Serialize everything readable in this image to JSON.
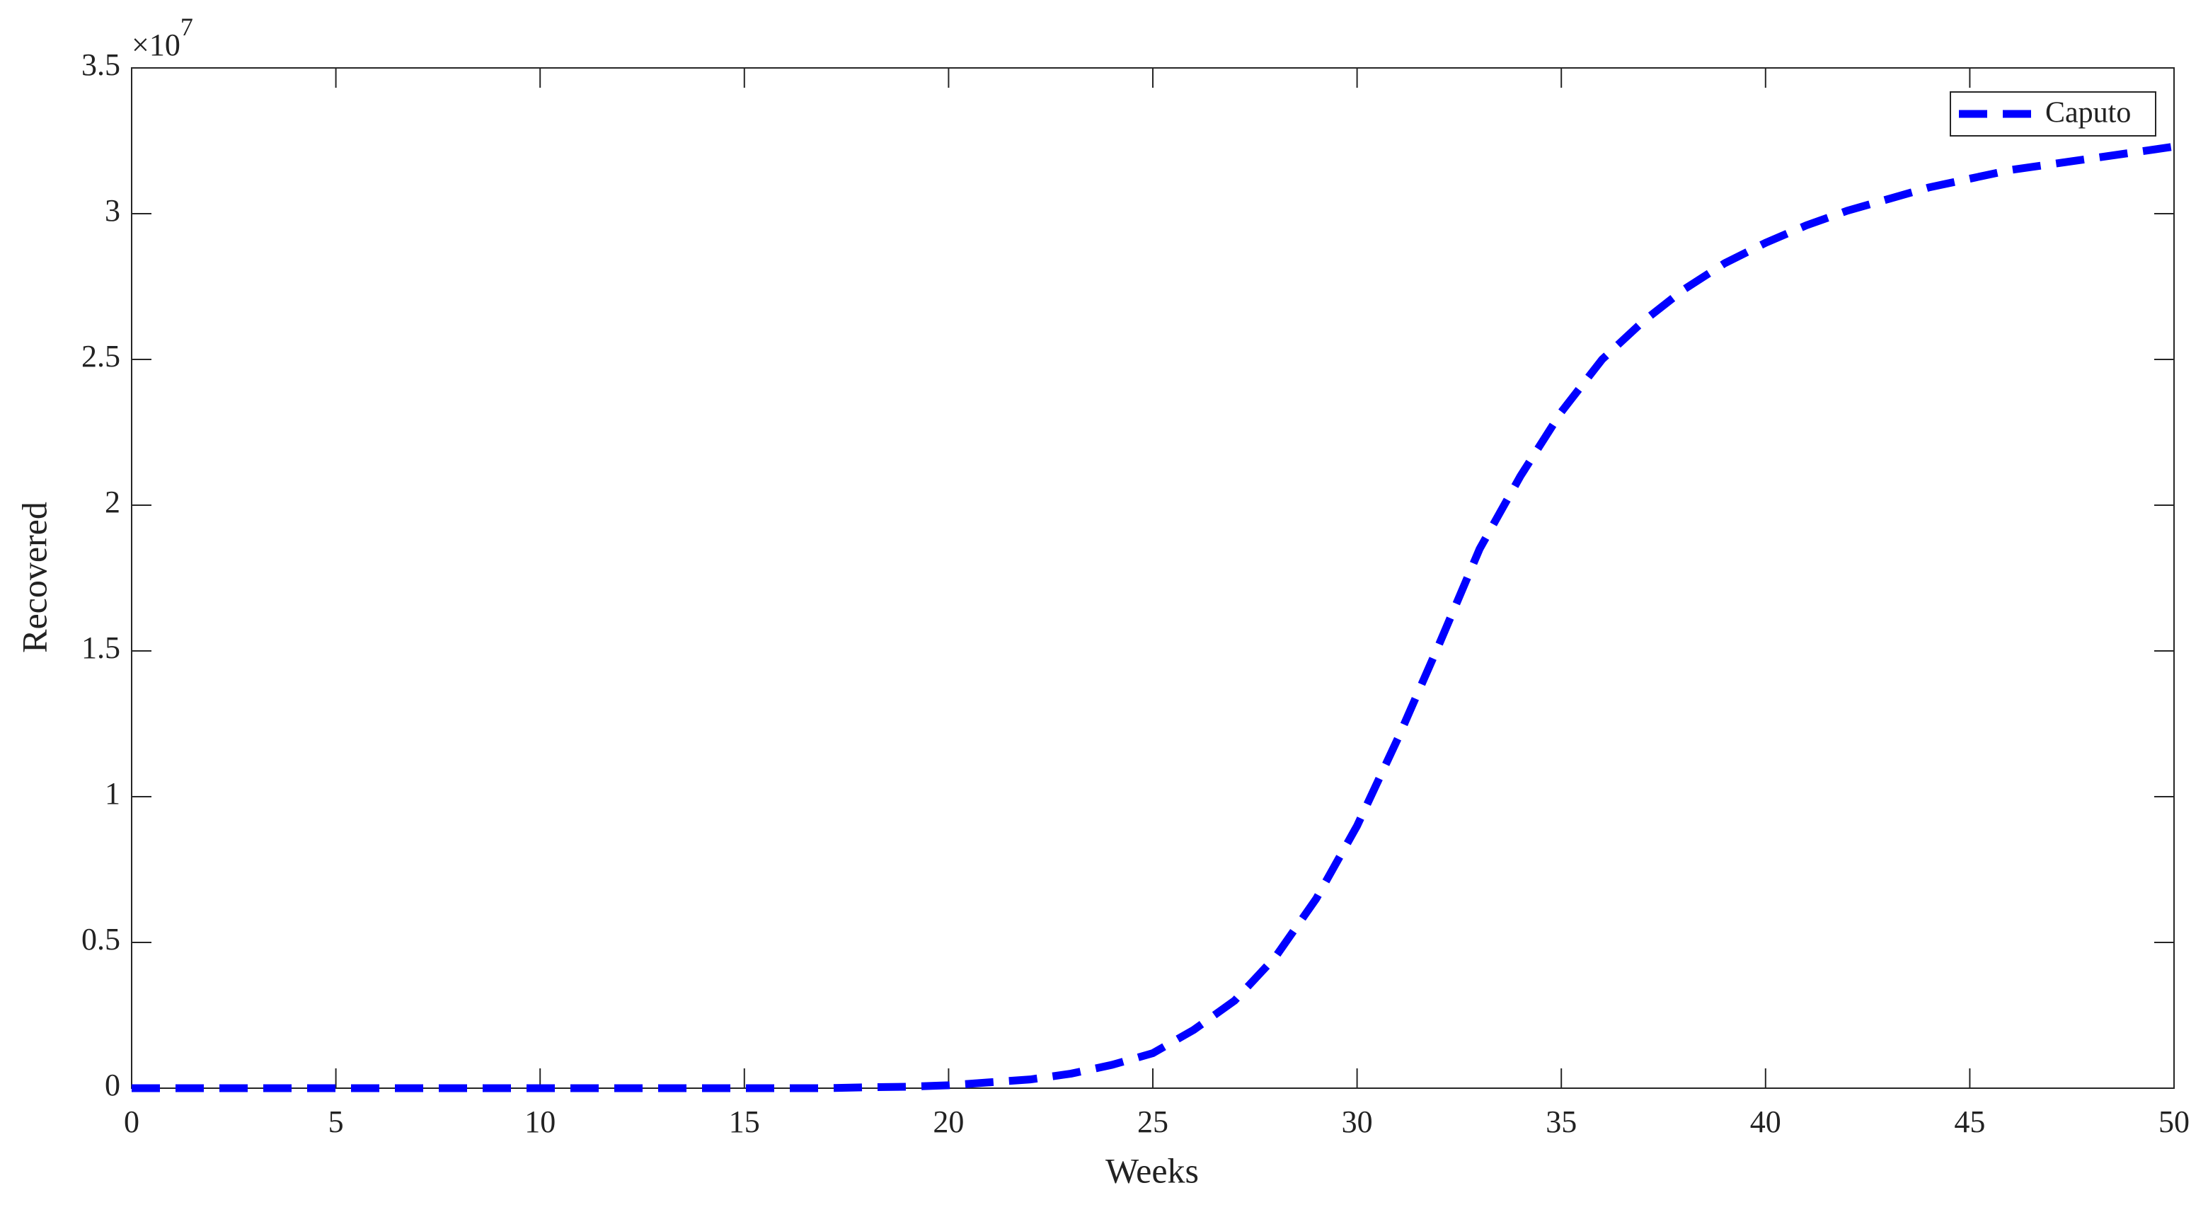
{
  "chart_data": {
    "type": "line",
    "x_label": "Weeks",
    "y_label": "Recovered",
    "y_multiplier": {
      "base": "×10",
      "power": "7"
    },
    "x": [
      0,
      1,
      2,
      3,
      4,
      5,
      6,
      7,
      8,
      9,
      10,
      11,
      12,
      13,
      14,
      15,
      16,
      17,
      18,
      19,
      20,
      21,
      22,
      23,
      24,
      25,
      26,
      27,
      28,
      29,
      30,
      31,
      32,
      33,
      34,
      35,
      36,
      37,
      38,
      39,
      40,
      41,
      42,
      43,
      44,
      45,
      46,
      47,
      48,
      49,
      50
    ],
    "series": [
      {
        "name": "Caputo",
        "color": "#0000ff",
        "values": [
          0,
          0,
          0,
          0,
          0,
          0,
          0,
          0,
          0,
          0,
          0,
          0,
          0,
          0,
          0,
          0,
          0,
          0,
          0.003,
          0.005,
          0.01,
          0.02,
          0.03,
          0.05,
          0.08,
          0.12,
          0.2,
          0.3,
          0.45,
          0.65,
          0.9,
          1.2,
          1.52,
          1.85,
          2.1,
          2.32,
          2.5,
          2.63,
          2.74,
          2.83,
          2.9,
          2.96,
          3.01,
          3.05,
          3.09,
          3.12,
          3.15,
          3.17,
          3.19,
          3.21,
          3.23
        ]
      }
    ],
    "xlim": [
      0,
      50
    ],
    "xticks": [
      0,
      5,
      10,
      15,
      20,
      25,
      30,
      35,
      40,
      45,
      50
    ],
    "ylim": [
      0,
      3.5
    ],
    "yticks": [
      0,
      0.5,
      1,
      1.5,
      2,
      2.5,
      3,
      3.5
    ],
    "legend": "upper right",
    "grid": false
  }
}
